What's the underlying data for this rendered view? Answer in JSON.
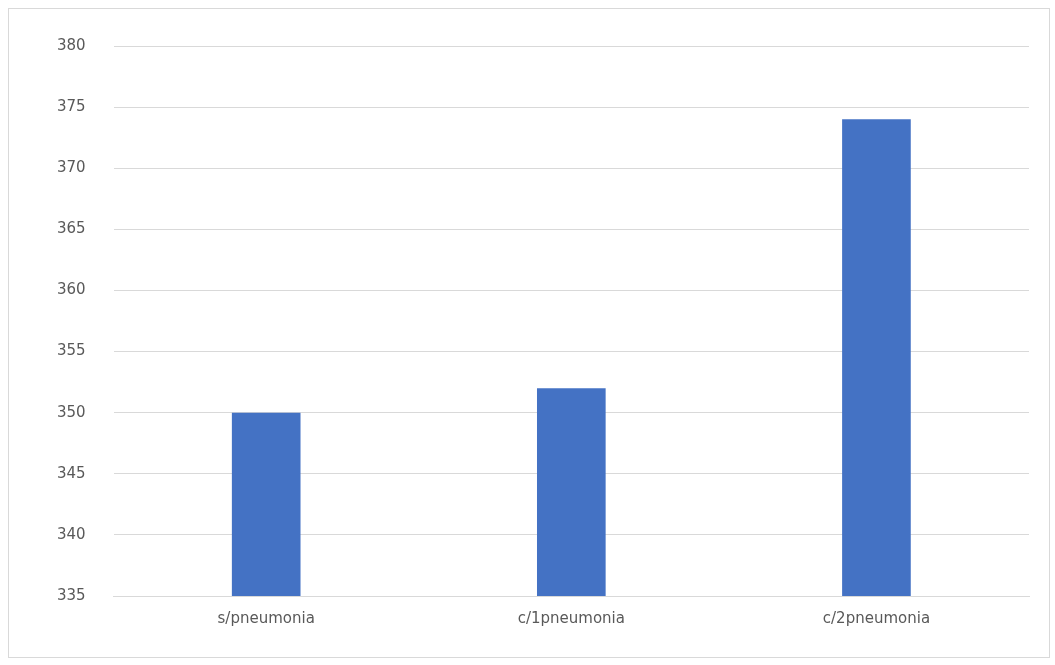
{
  "chart_data": {
    "type": "bar",
    "categories": [
      "s/pneumonia",
      "c/1pneumonia",
      "c/2pneumonia"
    ],
    "values": [
      350,
      352,
      374
    ],
    "color": "#4472c4",
    "ylim": [
      335,
      380
    ],
    "yticks": [
      335,
      340,
      345,
      350,
      355,
      360,
      365,
      370,
      375,
      380
    ],
    "grid": "y",
    "legend": false
  }
}
